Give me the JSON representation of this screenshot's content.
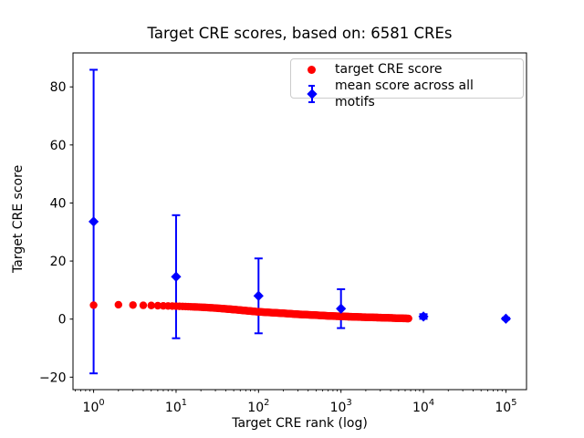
{
  "chart_data": {
    "type": "scatter",
    "title": "Target CRE scores, based on: 6581 CREs",
    "xlabel": "Target CRE rank (log)",
    "ylabel": "Target CRE score",
    "x_scale": "log",
    "grid": false,
    "legend_position": "upper right",
    "n_cres": 6581,
    "xlim": [
      0.5623,
      177828
    ],
    "ylim": [
      -24.3,
      91.7
    ],
    "x_ticks": [
      1,
      10,
      100,
      1000,
      10000,
      100000
    ],
    "y_ticks": [
      -20,
      0,
      20,
      40,
      60,
      80
    ],
    "series": [
      {
        "name": "target CRE score",
        "marker": "circle",
        "color": "#ff0000",
        "max_rank": 6581,
        "profile_log10rank": [
          0.0,
          0.3,
          0.48,
          0.6,
          0.7,
          0.85,
          1.0,
          1.18,
          1.3,
          1.48,
          1.7,
          1.85,
          2.0,
          2.18,
          2.3,
          2.48,
          2.7,
          2.85,
          3.0,
          3.18,
          3.3,
          3.48,
          3.6,
          3.7,
          3.82
        ],
        "profile_score": [
          4.8,
          4.95,
          4.85,
          4.75,
          4.7,
          4.55,
          4.45,
          4.25,
          4.1,
          3.8,
          3.3,
          2.9,
          2.5,
          2.2,
          2.0,
          1.65,
          1.35,
          1.1,
          0.95,
          0.75,
          0.65,
          0.5,
          0.4,
          0.3,
          0.2
        ]
      },
      {
        "name": "mean score across all motifs",
        "marker": "diamond",
        "color": "#0000ff",
        "x": [
          1,
          10,
          100,
          1000,
          10000,
          100000
        ],
        "y": [
          33.6,
          14.6,
          8.0,
          3.6,
          0.9,
          0.15
        ],
        "yerr": [
          52.3,
          21.2,
          12.9,
          6.7,
          0.8,
          0.3
        ]
      }
    ]
  }
}
